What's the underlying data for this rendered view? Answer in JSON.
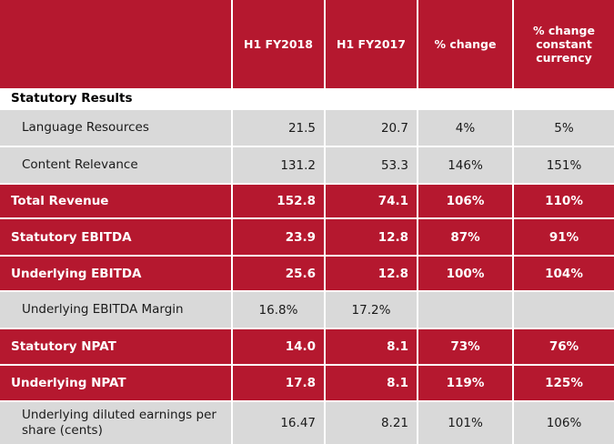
{
  "header": {
    "col1": "H1 FY2018",
    "col2": "H1 FY2017",
    "col3": "% change",
    "col4": "% change constant currency"
  },
  "section": "Statutory Results",
  "rows": [
    {
      "label": "Language Resources",
      "v1": "21.5",
      "v2": "20.7",
      "v3": "4%",
      "v4": "5%"
    },
    {
      "label": "Content Relevance",
      "v1": "131.2",
      "v2": "53.3",
      "v3": "146%",
      "v4": "151%"
    },
    {
      "label": "Total Revenue",
      "v1": "152.8",
      "v2": "74.1",
      "v3": "106%",
      "v4": "110%"
    },
    {
      "label": "Statutory EBITDA",
      "v1": "23.9",
      "v2": "12.8",
      "v3": "87%",
      "v4": "91%"
    },
    {
      "label": "Underlying EBITDA",
      "v1": "25.6",
      "v2": "12.8",
      "v3": "100%",
      "v4": "104%"
    },
    {
      "label": "Underlying EBITDA Margin",
      "v1": "16.8%",
      "v2": "17.2%",
      "v3": "",
      "v4": ""
    },
    {
      "label": "Statutory NPAT",
      "v1": "14.0",
      "v2": "8.1",
      "v3": "73%",
      "v4": "76%"
    },
    {
      "label": "Underlying NPAT",
      "v1": "17.8",
      "v2": "8.1",
      "v3": "119%",
      "v4": "125%"
    },
    {
      "label": "Underlying diluted earnings per share (cents)",
      "v1": "16.47",
      "v2": "8.21",
      "v3": "101%",
      "v4": "106%"
    }
  ]
}
